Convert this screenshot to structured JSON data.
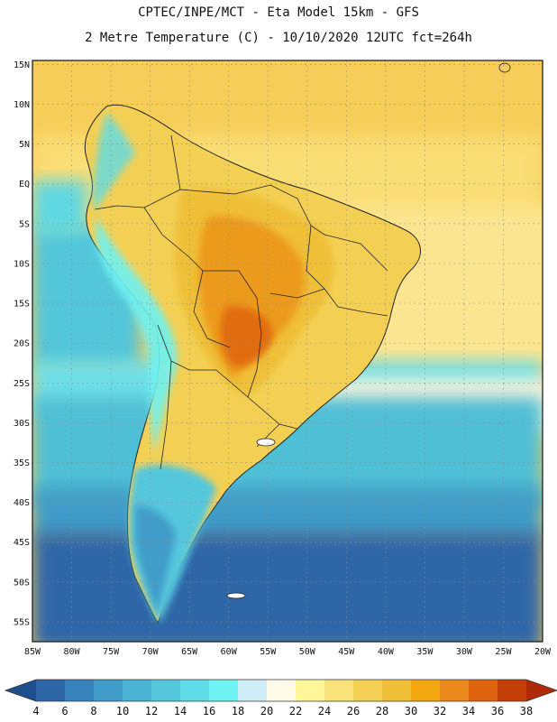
{
  "header": {
    "line1": "CPTEC/INPE/MCT -  Eta Model 15km - GFS",
    "line2": "2 Metre Temperature (C) - 10/10/2020 12UTC fct=264h"
  },
  "map": {
    "lon_range": [
      -85,
      -20
    ],
    "lat_range": [
      -57.5,
      15.5
    ],
    "lon_ticks": [
      "85W",
      "80W",
      "75W",
      "70W",
      "65W",
      "60W",
      "55W",
      "50W",
      "45W",
      "40W",
      "35W",
      "30W",
      "25W",
      "20W"
    ],
    "lat_ticks": [
      "15N",
      "10N",
      "5N",
      "EQ",
      "5S",
      "10S",
      "15S",
      "20S",
      "25S",
      "30S",
      "35S",
      "40S",
      "45S",
      "50S",
      "55S"
    ],
    "gridlines": true
  },
  "colorbar": {
    "labels": [
      "4",
      "6",
      "8",
      "10",
      "12",
      "14",
      "16",
      "18",
      "20",
      "22",
      "24",
      "26",
      "28",
      "30",
      "32",
      "34",
      "36",
      "38"
    ],
    "colors": [
      "#2f66a8",
      "#3882bd",
      "#3f9cc8",
      "#4bb3d4",
      "#55c7dd",
      "#5fdce7",
      "#6ef2f2",
      "#cfeef7",
      "#fffbe6",
      "#fff599",
      "#f9e27a",
      "#f3d054",
      "#efbf38",
      "#f4a810",
      "#ec8a1c",
      "#e0640f",
      "#c43e08"
    ],
    "under_color": "#1f4e8c",
    "over_color": "#b02a08"
  }
}
